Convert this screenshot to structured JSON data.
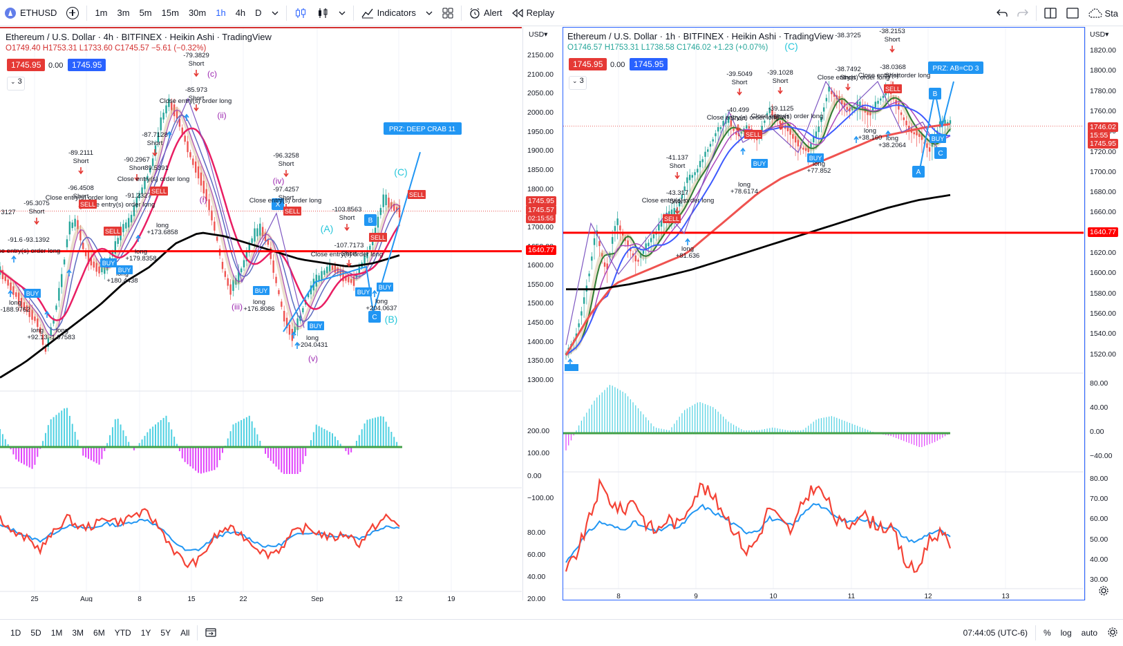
{
  "toolbar": {
    "symbol": "ETHUSD",
    "intervals": [
      "1m",
      "3m",
      "5m",
      "15m",
      "30m",
      "1h",
      "4h",
      "D"
    ],
    "active_interval": "1h",
    "indicators_label": "Indicators",
    "alert_label": "Alert",
    "replay_label": "Replay",
    "right_cut_label": "Sta"
  },
  "left_chart": {
    "title": "Ethereum / U.S. Dollar · 4h · BITFINEX · Heikin Ashi · TradingView",
    "ohlc": {
      "o": "O1749.40",
      "h": "H1753.31",
      "l": "L1733.60",
      "c": "C1745.57",
      "chg": "−5.61 (−0.32%)"
    },
    "bid": "1745.95",
    "spread": "0.00",
    "ask": "1745.95",
    "collapse_count": "3",
    "currency": "USD",
    "price_ticks": [
      "2150.00",
      "2100.00",
      "2050.00",
      "2000.00",
      "1950.00",
      "1900.00",
      "1850.00",
      "1800.00",
      "1750.00",
      "1700.00",
      "1650.00",
      "1600.00",
      "1550.00",
      "1500.00",
      "1450.00",
      "1400.00",
      "1350.00",
      "1300.00"
    ],
    "price_tag_1": "1745.95",
    "price_tag_2": "1745.57",
    "countdown": "02:15:55",
    "level_tag": "1640.77",
    "osc_ticks": [
      "200.00",
      "100.00",
      "0.00",
      "−100.00"
    ],
    "rsi_ticks": [
      "80.00",
      "60.00",
      "40.00",
      "20.00"
    ],
    "time_ticks": [
      "25",
      "Aug",
      "8",
      "15",
      "22",
      "Sep",
      "12",
      "19"
    ],
    "annotations": {
      "prz": "PRZ: DEEP CRAB 11",
      "short_1": "-79.3829",
      "short_2": "-85.973",
      "short_3": "-87.7128",
      "short_4": "-89.2111",
      "short_5": "-90.2967",
      "short_6": "-89.5391",
      "short_7": "-91.2327",
      "short_8": "-96.4508",
      "short_9": "-95.3075",
      "short_10": "-96.3258",
      "short_11": "-97.4257",
      "short_12": "-103.8563",
      "short_13": "-107.7173",
      "short_14": "-91.6",
      "short_15": "-93.1392",
      "short_16": "3127",
      "long_1": "+173.6858",
      "long_2": "+179.8358",
      "long_3": "+180.4438",
      "long_4": "+176.8086",
      "long_5": "+204.0637",
      "long_6": "+204.0431",
      "long_7": "+92.13",
      "long_8": "-188.9762",
      "long_9": "-1.97583",
      "close_order": "Close entry(s) order long",
      "short_word": "Short",
      "long_word": "long",
      "sell_word": "SELL",
      "buy_word": "BUY",
      "wave_c": "(c)",
      "wave_ii": "(ii)",
      "wave_i": "(i)",
      "wave_iii": "(iii)",
      "wave_iv": "(iv)",
      "wave_v": "(v)",
      "wave_A": "(A)",
      "wave_B": "(B)",
      "wave_C": "(C)",
      "pt_X": "X",
      "pt_B": "B",
      "pt_C": "C"
    }
  },
  "right_chart": {
    "title": "Ethereum / U.S. Dollar · 1h · BITFINEX · Heikin Ashi · TradingView",
    "ohlc": {
      "o": "O1746.57",
      "h": "H1753.31",
      "l": "L1738.58",
      "c": "C1746.02",
      "chg": "+1.23 (+0.07%)"
    },
    "bid": "1745.95",
    "spread": "0.00",
    "ask": "1745.95",
    "collapse_count": "3",
    "currency": "USD",
    "price_ticks": [
      "1820.00",
      "1800.00",
      "1780.00",
      "1760.00",
      "1740.00",
      "1720.00",
      "1700.00",
      "1680.00",
      "1660.00",
      "1640.00",
      "1620.00",
      "1600.00",
      "1580.00",
      "1560.00",
      "1540.00",
      "1520.00"
    ],
    "price_tag_1": "1746.02",
    "countdown": "15:55",
    "price_tag_2": "1745.95",
    "level_tag": "1640.77",
    "osc_ticks": [
      "80.00",
      "40.00",
      "0.00",
      "−40.00"
    ],
    "rsi_ticks": [
      "80.00",
      "70.00",
      "60.00",
      "50.00",
      "40.00",
      "30.00"
    ],
    "time_ticks": [
      "8",
      "9",
      "10",
      "11",
      "12",
      "13"
    ],
    "annotations": {
      "prz": "PRZ: AB=CD 3",
      "wave_C": "(C)",
      "short_1": "-38.2153",
      "short_2": "-39.5049",
      "short_3": "-39.1028",
      "short_4": "-38.7492",
      "short_5": "-38.0368",
      "short_6": "-40.499",
      "short_7": "-39.1125",
      "short_8": "-41.137",
      "short_9": "-43.317",
      "top_cut": "-38.3?25",
      "long_1": "+38.160",
      "long_2": "+38.2064",
      "long_3": "+78.6174",
      "long_4": "+77.852",
      "long_5": "+81.636",
      "close_order": "Close entry(s) order long",
      "short_word": "Short",
      "long_word": "long",
      "sell_word": "SELL",
      "buy_word": "BUY",
      "pt_A": "A",
      "pt_B": "B",
      "pt_C": "C"
    }
  },
  "bottombar": {
    "ranges": [
      "1D",
      "5D",
      "1M",
      "3M",
      "6M",
      "YTD",
      "1Y",
      "5Y",
      "All"
    ],
    "clock": "07:44:05 (UTC-6)",
    "pct": "%",
    "log": "log",
    "auto": "auto"
  },
  "colors": {
    "accent": "#2962ff",
    "sell": "#e53935",
    "buy": "#2196f3",
    "level": "#ff0000",
    "ma_black": "#000000",
    "ma_red": "#e91e63",
    "ma_blue": "#3f51b5",
    "rsi_red": "#f44336",
    "rsi_blue": "#2196f3",
    "osc_pos": "#4dd0e1",
    "osc_neg": "#e040fb"
  }
}
